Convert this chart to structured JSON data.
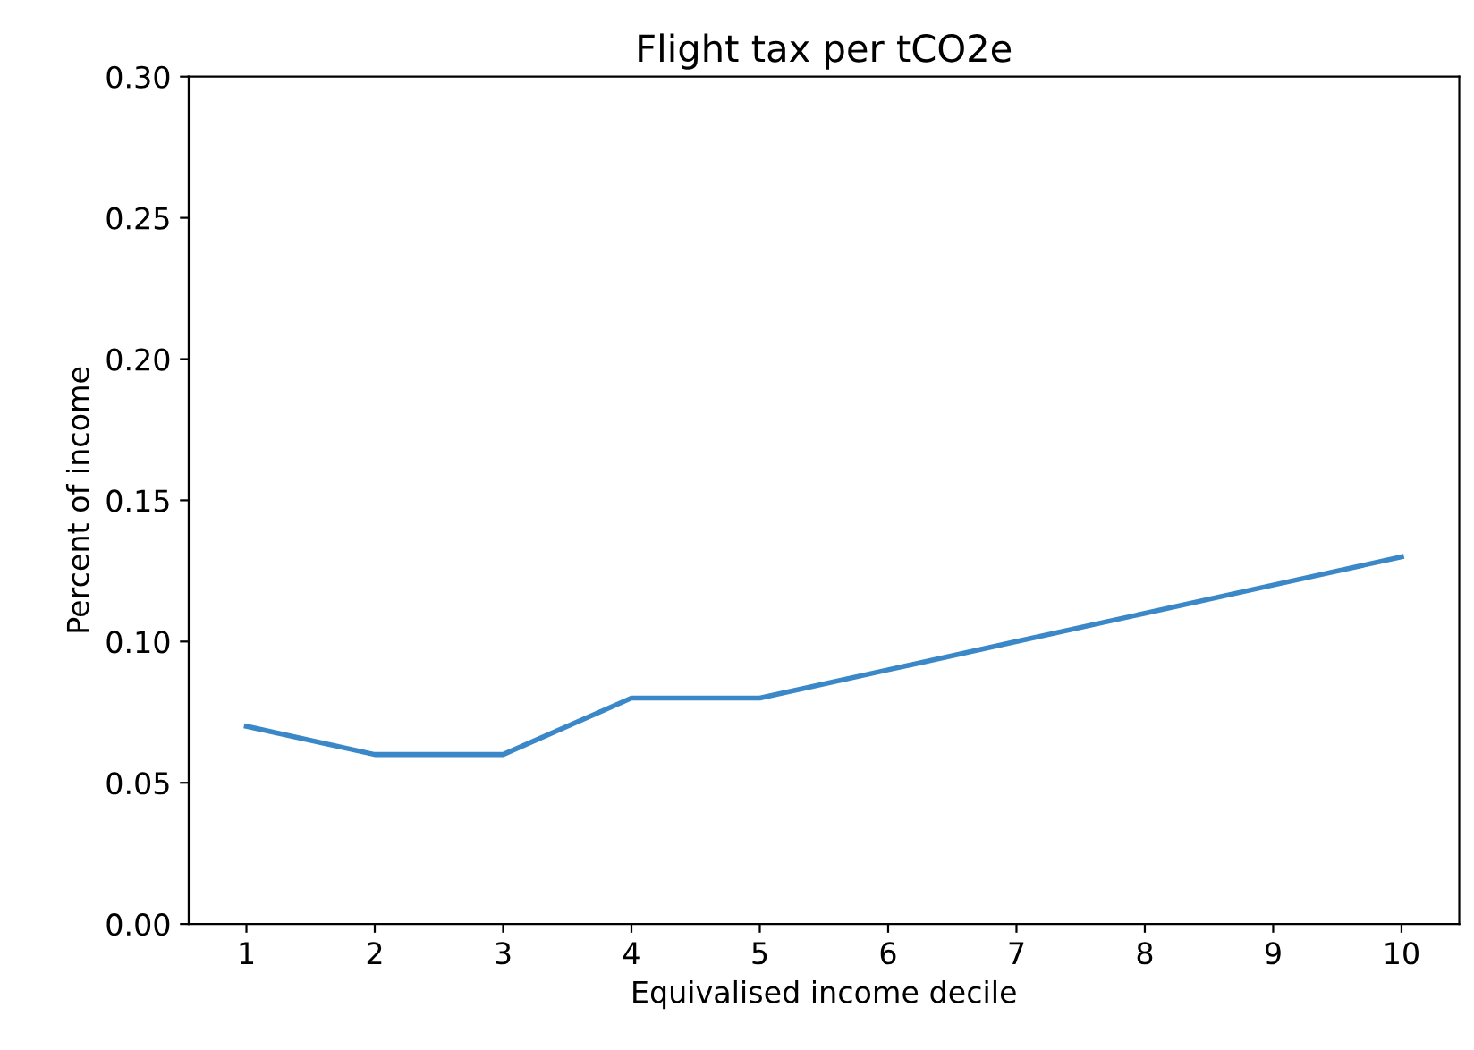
{
  "chart_data": {
    "type": "line",
    "title": "Flight tax per tCO2e",
    "xlabel": "Equivalised income decile",
    "ylabel": "Percent of income",
    "x": [
      1,
      2,
      3,
      4,
      5,
      6,
      7,
      8,
      9,
      10
    ],
    "series": [
      {
        "color": "#3a88c8",
        "values": [
          0.07,
          0.06,
          0.06,
          0.08,
          0.08,
          0.09,
          0.1,
          0.11,
          0.12,
          0.13
        ]
      }
    ],
    "xlim": [
      0.55,
      10.45
    ],
    "xticks": [
      1,
      2,
      3,
      4,
      5,
      6,
      7,
      8,
      9,
      10
    ],
    "ylim": [
      0,
      0.3
    ],
    "yticks": [
      {
        "value": 0,
        "label": "0.00"
      },
      {
        "value": 0.05,
        "label": "0.05"
      },
      {
        "value": 0.1,
        "label": "0.10"
      },
      {
        "value": 0.15,
        "label": "0.15"
      },
      {
        "value": 0.2,
        "label": "0.20"
      },
      {
        "value": 0.25,
        "label": "0.25"
      },
      {
        "value": 0.3,
        "label": "0.30"
      }
    ],
    "grid": false,
    "legend": false
  }
}
